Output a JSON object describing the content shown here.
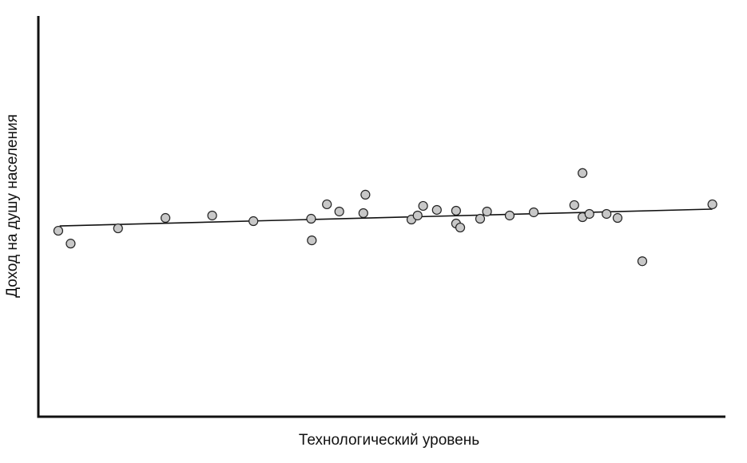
{
  "chart_data": {
    "type": "scatter",
    "x_label": "Технологический уровень",
    "y_label": "Доход на душу населения",
    "xlim": [
      0,
      100
    ],
    "ylim": [
      0,
      100
    ],
    "grid": false,
    "color": "#c8c8c8",
    "edge_color": "#222222",
    "line_color": "#111111",
    "x": [
      2.9,
      4.7,
      11.6,
      18.5,
      25.3,
      31.3,
      39.7,
      39.8,
      42.0,
      43.8,
      47.3,
      47.6,
      54.3,
      55.2,
      56.0,
      58.0,
      60.8,
      60.8,
      61.4,
      64.3,
      65.3,
      68.6,
      72.1,
      78.0,
      79.2,
      79.2,
      80.2,
      82.7,
      84.3,
      87.9,
      98.1
    ],
    "values": [
      46.4,
      43.2,
      47.0,
      49.6,
      50.2,
      48.8,
      49.4,
      44.0,
      53.0,
      51.2,
      50.8,
      55.4,
      49.2,
      50.2,
      52.6,
      51.6,
      51.4,
      48.2,
      47.2,
      49.4,
      51.2,
      50.2,
      51.0,
      52.8,
      60.8,
      49.8,
      50.6,
      50.6,
      49.6,
      38.8,
      53.0
    ],
    "trend": {
      "x": [
        3.1,
        98.1
      ],
      "values": [
        47.6,
        51.8
      ]
    }
  }
}
